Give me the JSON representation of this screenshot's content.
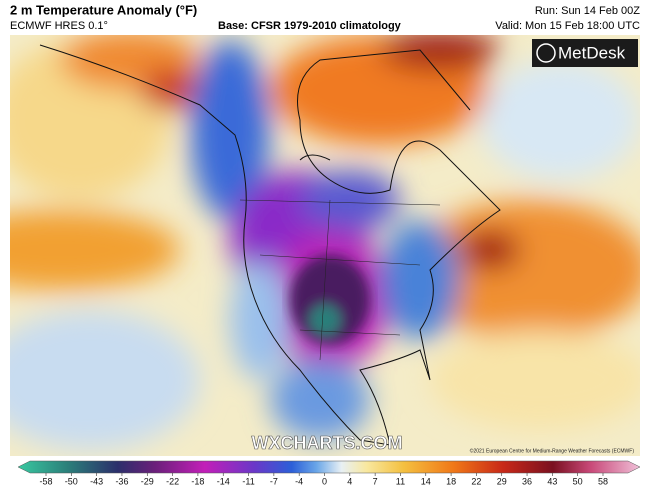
{
  "header": {
    "title": "2 m Temperature Anomaly (°F)",
    "model": "ECMWF HRES 0.1°",
    "base": "Base: CFSR 1979-2010 climatology",
    "run": "Run: Sun 14 Feb 00Z",
    "valid": "Valid: Mon 15 Feb 18:00 UTC"
  },
  "logo": "MetDesk",
  "watermark": "WXCHARTS.COM",
  "copyright": "©2021 European Centre for Medium-Range Weather Forecasts (ECMWF)",
  "colorbar": {
    "ticks": [
      -58,
      -50,
      -43,
      -36,
      -29,
      -22,
      -18,
      -14,
      -11,
      -7,
      -4,
      0,
      4,
      7,
      11,
      14,
      18,
      22,
      29,
      36,
      43,
      50,
      58
    ]
  }
}
